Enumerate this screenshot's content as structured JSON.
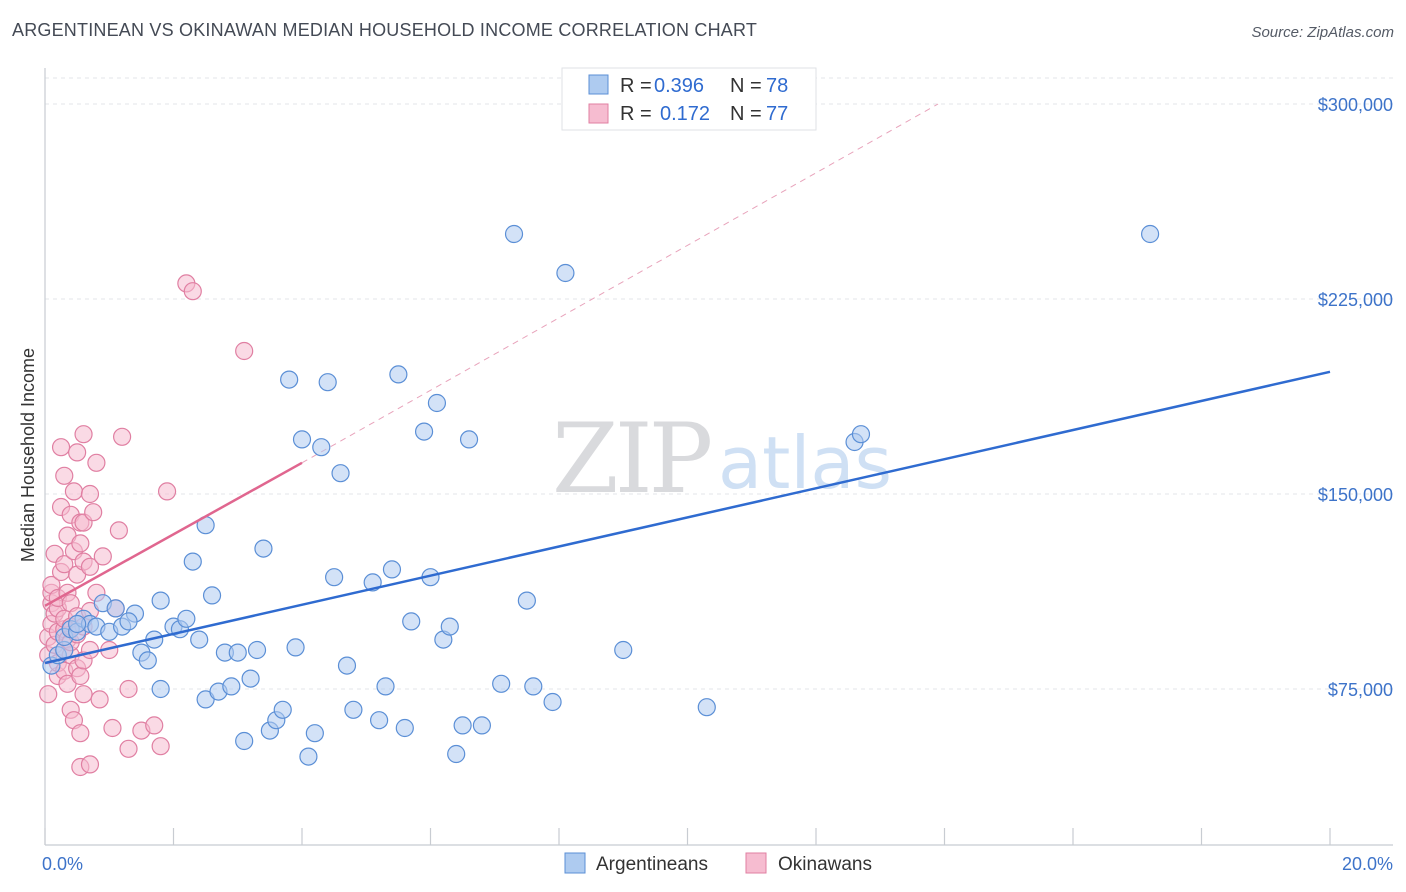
{
  "header": {
    "title": "ARGENTINEAN VS OKINAWAN MEDIAN HOUSEHOLD INCOME CORRELATION CHART",
    "source": "Source: ZipAtlas.com"
  },
  "watermark": {
    "zip": "ZIP",
    "atlas": "atlas"
  },
  "legend": {
    "blue": {
      "r_label": "R =",
      "r_value": "0.396",
      "n_label": "N =",
      "n_value": "78"
    },
    "pink": {
      "r_label": "R =",
      "r_value": "0.172",
      "n_label": "N =",
      "n_value": "77"
    }
  },
  "bottom_legend": {
    "blue": "Argentineans",
    "pink": "Okinawans"
  },
  "colors": {
    "blue_fill": "#aecbf0",
    "blue_stroke": "#5b8fd6",
    "blue_line": "#2f6bd0",
    "pink_fill": "#f6bcd0",
    "pink_stroke": "#e07fa2",
    "pink_line": "#e0668f",
    "grid": "#e3e6ea",
    "axis_text": "#3d73c9"
  },
  "chart_data": {
    "type": "scatter",
    "title": "ARGENTINEAN VS OKINAWAN MEDIAN HOUSEHOLD INCOME CORRELATION CHART",
    "xlabel": "",
    "ylabel": "Median Household Income",
    "xlim": [
      0,
      20
    ],
    "ylim": [
      15000,
      310000
    ],
    "x_tick_labels": [
      "0.0%",
      "20.0%"
    ],
    "y_ticks": [
      75000,
      150000,
      225000,
      300000
    ],
    "y_tick_labels": [
      "$75,000",
      "$150,000",
      "$225,000",
      "$300,000"
    ],
    "grid": true,
    "legend_position": "top-center",
    "series": [
      {
        "name": "Argentineans",
        "r": 0.396,
        "n": 78,
        "trend": {
          "x": [
            0.0,
            20.0
          ],
          "y": [
            85000,
            197000
          ],
          "style": "solid"
        },
        "points": [
          [
            0.1,
            84000
          ],
          [
            0.2,
            88000
          ],
          [
            0.3,
            90000
          ],
          [
            0.3,
            95000
          ],
          [
            0.4,
            98000
          ],
          [
            0.5,
            97000
          ],
          [
            0.6,
            102000
          ],
          [
            0.7,
            100000
          ],
          [
            0.8,
            99000
          ],
          [
            0.9,
            108000
          ],
          [
            1.0,
            97000
          ],
          [
            1.1,
            106000
          ],
          [
            1.2,
            99000
          ],
          [
            1.4,
            104000
          ],
          [
            1.5,
            89000
          ],
          [
            1.6,
            86000
          ],
          [
            1.7,
            94000
          ],
          [
            1.8,
            75000
          ],
          [
            1.8,
            109000
          ],
          [
            2.0,
            99000
          ],
          [
            2.1,
            98000
          ],
          [
            2.2,
            102000
          ],
          [
            2.3,
            124000
          ],
          [
            2.4,
            94000
          ],
          [
            2.5,
            138000
          ],
          [
            2.5,
            71000
          ],
          [
            2.6,
            111000
          ],
          [
            2.7,
            74000
          ],
          [
            2.8,
            89000
          ],
          [
            2.9,
            76000
          ],
          [
            3.0,
            89000
          ],
          [
            3.1,
            55000
          ],
          [
            3.2,
            79000
          ],
          [
            3.3,
            90000
          ],
          [
            3.4,
            129000
          ],
          [
            3.5,
            59000
          ],
          [
            3.6,
            63000
          ],
          [
            3.7,
            67000
          ],
          [
            3.8,
            194000
          ],
          [
            3.9,
            91000
          ],
          [
            4.0,
            171000
          ],
          [
            4.1,
            49000
          ],
          [
            4.2,
            58000
          ],
          [
            4.3,
            168000
          ],
          [
            4.4,
            193000
          ],
          [
            4.5,
            118000
          ],
          [
            4.6,
            158000
          ],
          [
            4.7,
            84000
          ],
          [
            4.8,
            67000
          ],
          [
            5.1,
            116000
          ],
          [
            5.2,
            63000
          ],
          [
            5.3,
            76000
          ],
          [
            5.4,
            121000
          ],
          [
            5.5,
            196000
          ],
          [
            5.6,
            60000
          ],
          [
            5.7,
            101000
          ],
          [
            5.9,
            174000
          ],
          [
            6.0,
            118000
          ],
          [
            6.1,
            185000
          ],
          [
            6.2,
            94000
          ],
          [
            6.3,
            99000
          ],
          [
            6.4,
            50000
          ],
          [
            6.5,
            61000
          ],
          [
            6.6,
            171000
          ],
          [
            6.8,
            61000
          ],
          [
            7.1,
            77000
          ],
          [
            7.3,
            250000
          ],
          [
            7.5,
            109000
          ],
          [
            7.6,
            76000
          ],
          [
            7.9,
            70000
          ],
          [
            8.1,
            235000
          ],
          [
            9.0,
            90000
          ],
          [
            10.3,
            68000
          ],
          [
            12.6,
            170000
          ],
          [
            12.7,
            173000
          ],
          [
            17.2,
            250000
          ],
          [
            0.5,
            100000
          ],
          [
            1.3,
            101000
          ]
        ]
      },
      {
        "name": "Okinawans",
        "r": 0.172,
        "n": 77,
        "trend": {
          "x": [
            0.0,
            4.0
          ],
          "y": [
            107000,
            162000
          ],
          "style": "solid",
          "extension": {
            "x": [
              4.0,
              13.9
            ],
            "y": [
              162000,
              300000
            ],
            "style": "dashed"
          }
        },
        "points": [
          [
            0.05,
            73000
          ],
          [
            0.05,
            88000
          ],
          [
            0.05,
            95000
          ],
          [
            0.1,
            100000
          ],
          [
            0.1,
            108000
          ],
          [
            0.1,
            112000
          ],
          [
            0.1,
            115000
          ],
          [
            0.15,
            92000
          ],
          [
            0.15,
            104000
          ],
          [
            0.15,
            127000
          ],
          [
            0.2,
            80000
          ],
          [
            0.2,
            85000
          ],
          [
            0.2,
            97000
          ],
          [
            0.2,
            106000
          ],
          [
            0.2,
            110000
          ],
          [
            0.25,
            120000
          ],
          [
            0.25,
            145000
          ],
          [
            0.25,
            168000
          ],
          [
            0.3,
            82000
          ],
          [
            0.3,
            90000
          ],
          [
            0.3,
            98000
          ],
          [
            0.3,
            102000
          ],
          [
            0.3,
            123000
          ],
          [
            0.3,
            157000
          ],
          [
            0.35,
            77000
          ],
          [
            0.35,
            94000
          ],
          [
            0.35,
            112000
          ],
          [
            0.35,
            134000
          ],
          [
            0.4,
            67000
          ],
          [
            0.4,
            88000
          ],
          [
            0.4,
            93000
          ],
          [
            0.4,
            99000
          ],
          [
            0.4,
            108000
          ],
          [
            0.4,
            142000
          ],
          [
            0.45,
            63000
          ],
          [
            0.45,
            128000
          ],
          [
            0.45,
            151000
          ],
          [
            0.5,
            83000
          ],
          [
            0.5,
            96000
          ],
          [
            0.5,
            103000
          ],
          [
            0.5,
            119000
          ],
          [
            0.5,
            166000
          ],
          [
            0.55,
            45000
          ],
          [
            0.55,
            58000
          ],
          [
            0.55,
            80000
          ],
          [
            0.55,
            131000
          ],
          [
            0.55,
            139000
          ],
          [
            0.6,
            73000
          ],
          [
            0.6,
            86000
          ],
          [
            0.6,
            99000
          ],
          [
            0.6,
            124000
          ],
          [
            0.6,
            139000
          ],
          [
            0.6,
            173000
          ],
          [
            0.7,
            46000
          ],
          [
            0.7,
            90000
          ],
          [
            0.7,
            105000
          ],
          [
            0.7,
            122000
          ],
          [
            0.7,
            150000
          ],
          [
            0.75,
            143000
          ],
          [
            0.8,
            112000
          ],
          [
            0.8,
            162000
          ],
          [
            0.85,
            71000
          ],
          [
            0.9,
            126000
          ],
          [
            1.0,
            90000
          ],
          [
            1.05,
            60000
          ],
          [
            1.1,
            106000
          ],
          [
            1.15,
            136000
          ],
          [
            1.2,
            172000
          ],
          [
            1.3,
            52000
          ],
          [
            1.3,
            75000
          ],
          [
            1.5,
            59000
          ],
          [
            1.7,
            61000
          ],
          [
            1.8,
            53000
          ],
          [
            1.9,
            151000
          ],
          [
            2.2,
            231000
          ],
          [
            2.3,
            228000
          ],
          [
            3.1,
            205000
          ]
        ]
      }
    ]
  }
}
